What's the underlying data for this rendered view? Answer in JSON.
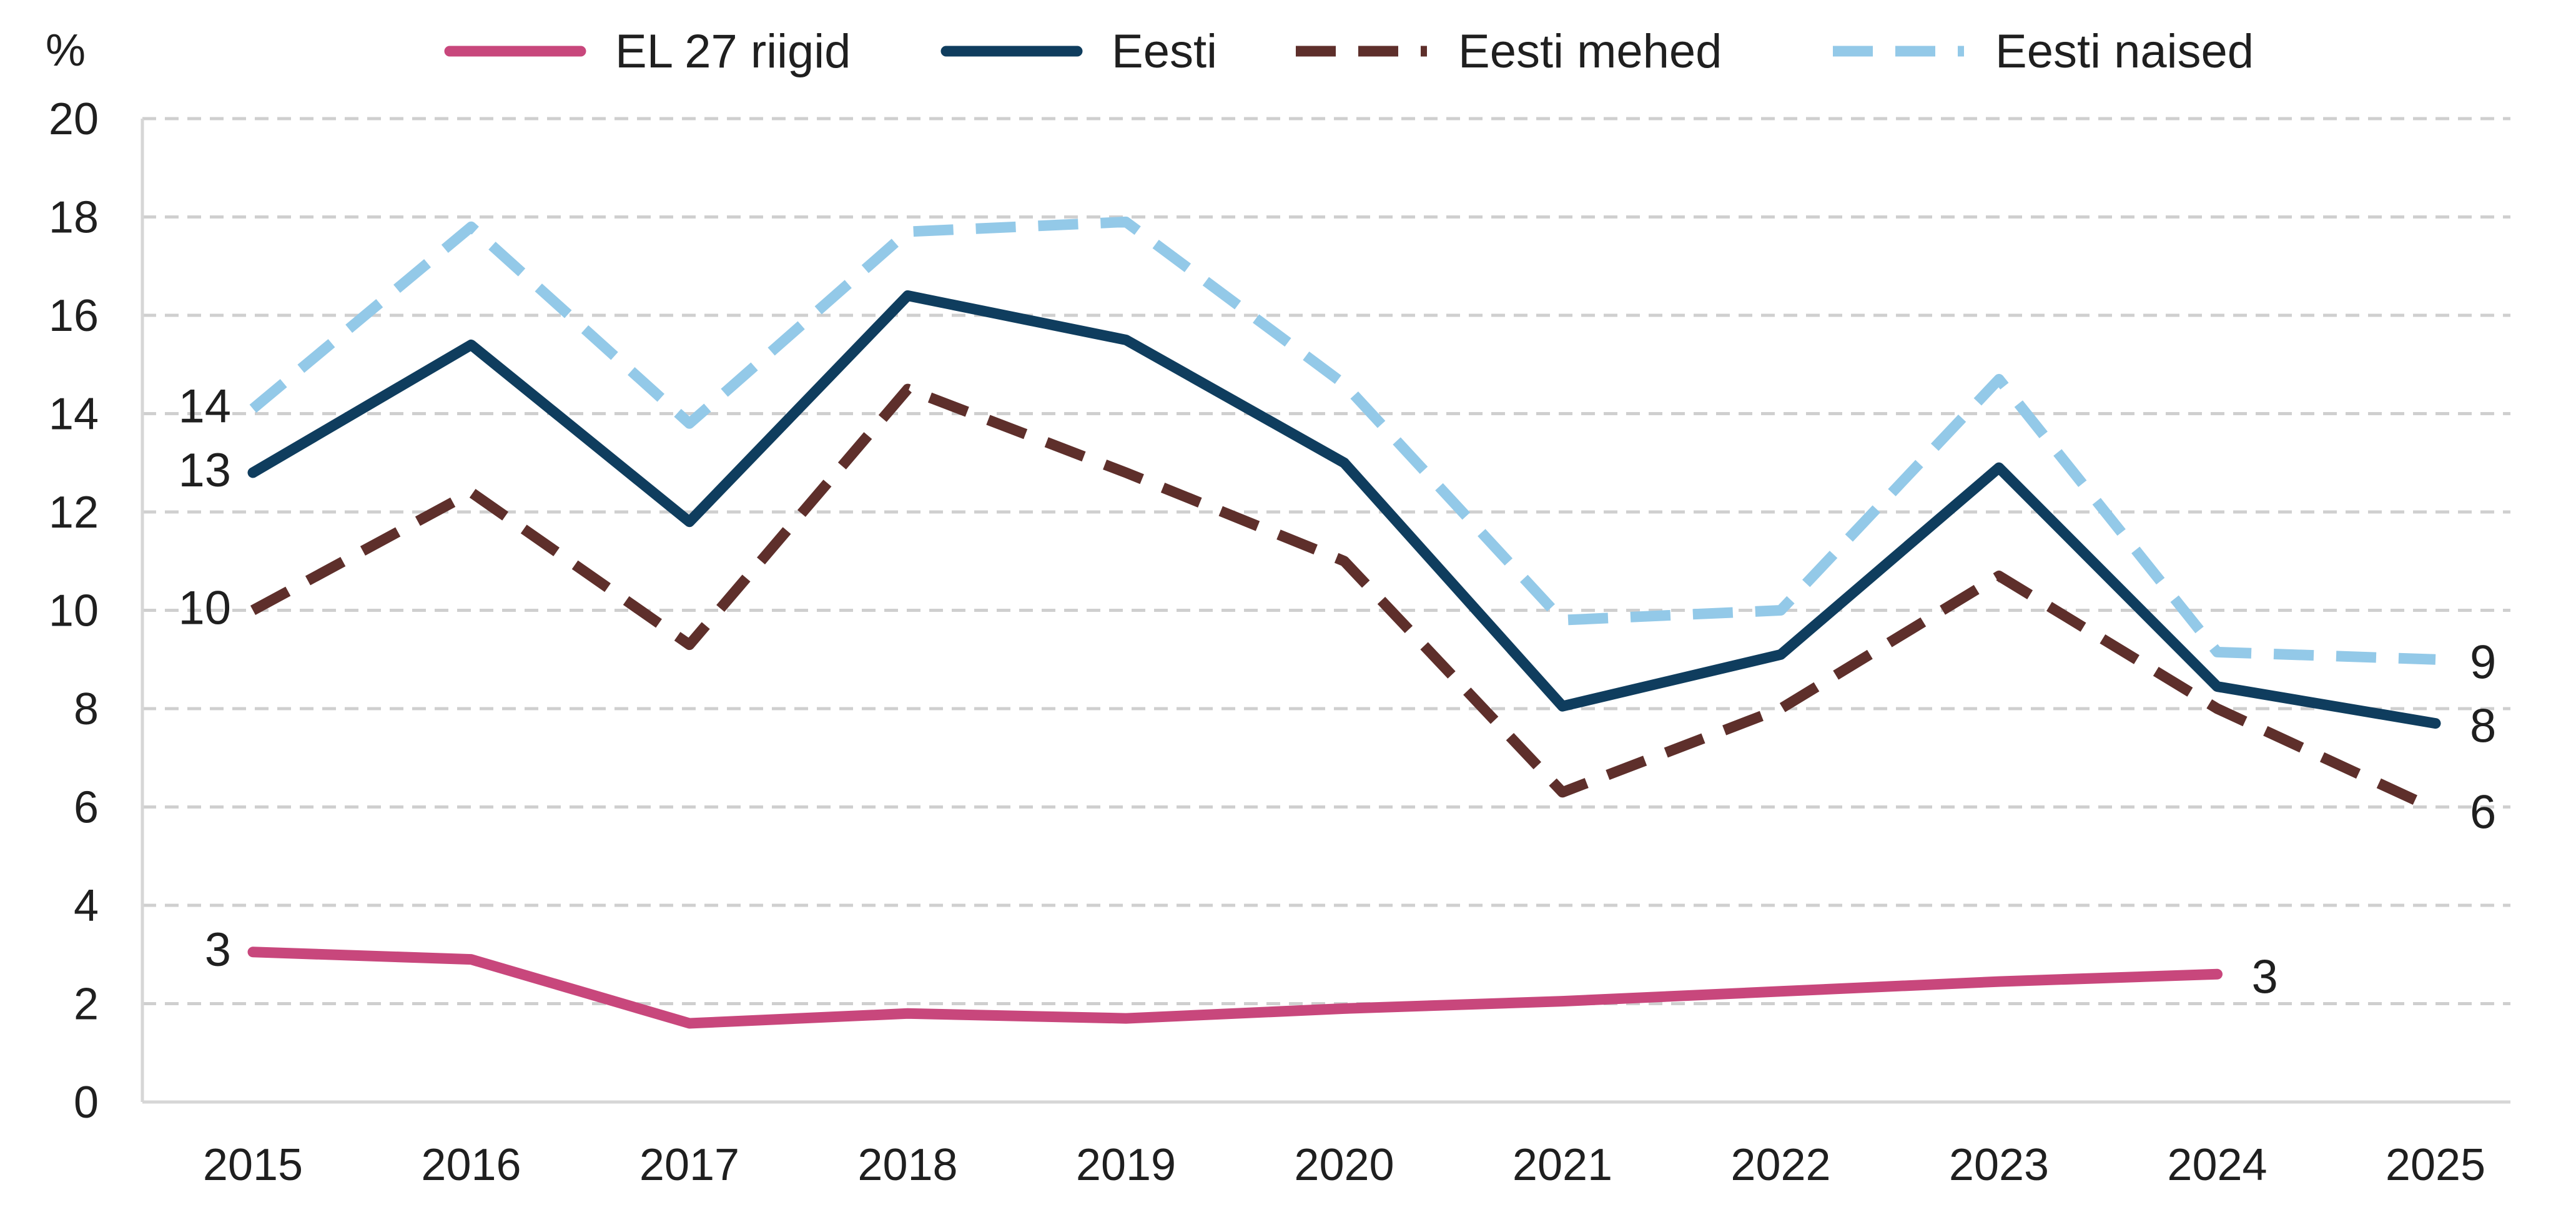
{
  "chart_data": {
    "type": "line",
    "title": "",
    "xlabel": "",
    "ylabel": "%",
    "ylim": [
      0,
      20
    ],
    "yticks": [
      "0",
      "2",
      "4",
      "6",
      "8",
      "10",
      "12",
      "14",
      "16",
      "18",
      "20"
    ],
    "grid": "horizontal-dashed",
    "legend_position": "top",
    "categories": [
      "2015",
      "2016",
      "2017",
      "2018",
      "2019",
      "2020",
      "2021",
      "2022",
      "2023",
      "2024",
      "2025"
    ],
    "series": [
      {
        "name": "EL 27 riigid",
        "color": "#c8477c",
        "dashed": false,
        "values": [
          3.05,
          2.9,
          1.6,
          1.8,
          1.7,
          1.9,
          2.05,
          2.25,
          2.45,
          2.6,
          null
        ],
        "start_label": "3",
        "end_label": "3"
      },
      {
        "name": "Eesti",
        "color": "#0f3d5e",
        "dashed": false,
        "values": [
          12.8,
          15.4,
          11.8,
          16.4,
          15.5,
          13.0,
          8.05,
          9.1,
          12.9,
          8.45,
          7.7
        ],
        "start_label": "13",
        "end_label": "8"
      },
      {
        "name": "Eesti mehed",
        "color": "#5e2f2b",
        "dashed": true,
        "values": [
          10.0,
          12.4,
          9.3,
          14.5,
          12.8,
          11.0,
          6.3,
          8.0,
          10.7,
          8.0,
          5.95
        ],
        "start_label": "10",
        "end_label": "6"
      },
      {
        "name": "Eesti naised",
        "color": "#93c9e8",
        "dashed": true,
        "values": [
          14.1,
          17.8,
          13.8,
          17.7,
          17.9,
          14.6,
          9.8,
          10.0,
          14.7,
          9.15,
          9.0
        ],
        "start_label": "14",
        "end_label": "9"
      }
    ]
  }
}
